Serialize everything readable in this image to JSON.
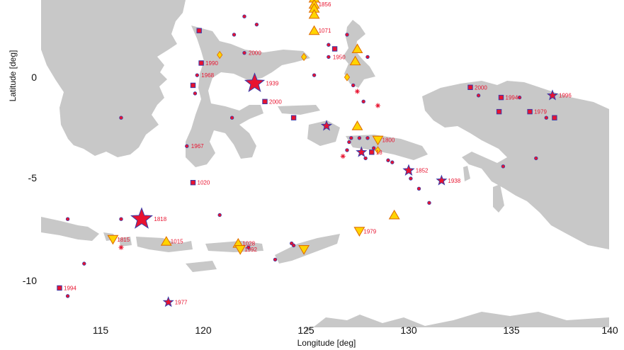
{
  "axes": {
    "x": {
      "label": "Longitude [deg]",
      "ticks": [
        "115",
        "120",
        "125",
        "130",
        "135",
        "140"
      ]
    },
    "y": {
      "label": "Latitude [deg]",
      "ticks": [
        "0",
        "-5",
        "-10"
      ]
    }
  },
  "colors": {
    "land": "#c8c8c8",
    "event_fill": "#e8132f",
    "event_stroke": "#3a3aa8",
    "volcano_fill": "#ffd400",
    "volcano_stroke": "#e07000",
    "label": "#e8132f"
  },
  "events": [
    {
      "lon": 125.4,
      "lat": 3.9,
      "type": "volcano-up"
    },
    {
      "lon": 125.4,
      "lat": 3.6,
      "type": "volcano-up",
      "label": "1856"
    },
    {
      "lon": 125.4,
      "lat": 3.4,
      "type": "volcano-up"
    },
    {
      "lon": 125.4,
      "lat": 3.1,
      "type": "volcano-up"
    },
    {
      "lon": 125.4,
      "lat": 2.3,
      "type": "volcano-up",
      "label": "1071"
    },
    {
      "lon": 122.0,
      "lat": 3.0,
      "type": "dot"
    },
    {
      "lon": 122.6,
      "lat": 2.6,
      "type": "dot"
    },
    {
      "lon": 119.8,
      "lat": 2.3,
      "type": "square"
    },
    {
      "lon": 121.5,
      "lat": 2.1,
      "type": "dot"
    },
    {
      "lon": 126.1,
      "lat": 1.6,
      "type": "dot"
    },
    {
      "lon": 127.0,
      "lat": 2.1,
      "type": "dot"
    },
    {
      "lon": 127.5,
      "lat": 1.4,
      "type": "volcano-up"
    },
    {
      "lon": 126.4,
      "lat": 1.4,
      "type": "square"
    },
    {
      "lon": 126.1,
      "lat": 1.0,
      "type": "dot",
      "label": "1950"
    },
    {
      "lon": 127.4,
      "lat": 0.8,
      "type": "volcano-up"
    },
    {
      "lon": 128.0,
      "lat": 1.0,
      "type": "dot"
    },
    {
      "lon": 122.0,
      "lat": 1.2,
      "type": "dot",
      "label": "2000"
    },
    {
      "lon": 120.8,
      "lat": 1.1,
      "type": "diamond"
    },
    {
      "lon": 124.9,
      "lat": 1.0,
      "type": "diamond"
    },
    {
      "lon": 119.9,
      "lat": 0.7,
      "type": "square",
      "label": "1990"
    },
    {
      "lon": 119.7,
      "lat": 0.1,
      "type": "dot",
      "label": "1968"
    },
    {
      "lon": 119.5,
      "lat": -0.4,
      "type": "square"
    },
    {
      "lon": 119.6,
      "lat": -0.8,
      "type": "dot"
    },
    {
      "lon": 122.5,
      "lat": -0.3,
      "type": "star",
      "size": 2.0,
      "label": "1939"
    },
    {
      "lon": 125.4,
      "lat": 0.1,
      "type": "dot"
    },
    {
      "lon": 127.0,
      "lat": 0.0,
      "type": "diamond"
    },
    {
      "lon": 127.3,
      "lat": -0.4,
      "type": "dot"
    },
    {
      "lon": 127.5,
      "lat": -0.7,
      "type": "burst"
    },
    {
      "lon": 123.0,
      "lat": -1.2,
      "type": "square",
      "label": "2000"
    },
    {
      "lon": 127.8,
      "lat": -1.2,
      "type": "dot"
    },
    {
      "lon": 128.5,
      "lat": -1.4,
      "type": "burst"
    },
    {
      "lon": 124.4,
      "lat": -2.0,
      "type": "square"
    },
    {
      "lon": 126.0,
      "lat": -2.4,
      "type": "star",
      "size": 1.0
    },
    {
      "lon": 127.5,
      "lat": -2.4,
      "type": "volcano-up"
    },
    {
      "lon": 127.2,
      "lat": -3.0,
      "type": "dot"
    },
    {
      "lon": 127.6,
      "lat": -3.0,
      "type": "dot"
    },
    {
      "lon": 127.1,
      "lat": -3.2,
      "type": "dot"
    },
    {
      "lon": 128.0,
      "lat": -3.0,
      "type": "dot"
    },
    {
      "lon": 128.5,
      "lat": -3.1,
      "type": "volcano-down",
      "label": "1800"
    },
    {
      "lon": 127.0,
      "lat": -3.6,
      "type": "dot"
    },
    {
      "lon": 127.7,
      "lat": -3.7,
      "type": "star",
      "size": 1.0
    },
    {
      "lon": 128.2,
      "lat": -3.7,
      "type": "square",
      "label": "18"
    },
    {
      "lon": 128.5,
      "lat": -3.6,
      "type": "diamond"
    },
    {
      "lon": 128.3,
      "lat": -3.5,
      "type": "dot"
    },
    {
      "lon": 127.9,
      "lat": -4.0,
      "type": "dot"
    },
    {
      "lon": 126.8,
      "lat": -3.9,
      "type": "burst"
    },
    {
      "lon": 121.4,
      "lat": -2.0,
      "type": "dot"
    },
    {
      "lon": 116.0,
      "lat": -2.0,
      "type": "dot"
    },
    {
      "lon": 119.2,
      "lat": -3.4,
      "type": "dot",
      "label": "1967"
    },
    {
      "lon": 129.0,
      "lat": -4.1,
      "type": "dot"
    },
    {
      "lon": 129.2,
      "lat": -4.2,
      "type": "dot"
    },
    {
      "lon": 130.0,
      "lat": -4.6,
      "type": "star",
      "size": 1.1,
      "label": "1852"
    },
    {
      "lon": 130.1,
      "lat": -5.0,
      "type": "dot"
    },
    {
      "lon": 130.5,
      "lat": -5.5,
      "type": "dot"
    },
    {
      "lon": 131.6,
      "lat": -5.1,
      "type": "star",
      "size": 1.0,
      "label": "1938"
    },
    {
      "lon": 131.0,
      "lat": -6.2,
      "type": "dot"
    },
    {
      "lon": 119.5,
      "lat": -5.2,
      "type": "square",
      "label": "1020"
    },
    {
      "lon": 133.0,
      "lat": -0.5,
      "type": "square",
      "label": "2000"
    },
    {
      "lon": 133.4,
      "lat": -0.9,
      "type": "dot"
    },
    {
      "lon": 134.5,
      "lat": -1.0,
      "type": "square",
      "label": "1994"
    },
    {
      "lon": 135.4,
      "lat": -1.0,
      "type": "dot"
    },
    {
      "lon": 137.0,
      "lat": -0.9,
      "type": "star",
      "size": 1.0,
      "label": "1996"
    },
    {
      "lon": 134.4,
      "lat": -1.7,
      "type": "square"
    },
    {
      "lon": 135.9,
      "lat": -1.7,
      "type": "square",
      "label": "1979"
    },
    {
      "lon": 136.7,
      "lat": -2.0,
      "type": "dot"
    },
    {
      "lon": 137.1,
      "lat": -2.0,
      "type": "square"
    },
    {
      "lon": 134.6,
      "lat": -4.4,
      "type": "dot"
    },
    {
      "lon": 136.2,
      "lat": -4.0,
      "type": "dot"
    },
    {
      "lon": 113.4,
      "lat": -7.0,
      "type": "dot"
    },
    {
      "lon": 116.0,
      "lat": -7.0,
      "type": "dot"
    },
    {
      "lon": 117.0,
      "lat": -7.0,
      "type": "star",
      "size": 2.2,
      "label": "1818"
    },
    {
      "lon": 120.8,
      "lat": -6.8,
      "type": "dot"
    },
    {
      "lon": 129.3,
      "lat": -6.8,
      "type": "volcano-up"
    },
    {
      "lon": 127.6,
      "lat": -7.6,
      "type": "volcano-down",
      "label": "1979"
    },
    {
      "lon": 115.6,
      "lat": -8.0,
      "type": "volcano-down",
      "label": "1815"
    },
    {
      "lon": 116.0,
      "lat": -8.4,
      "type": "burst"
    },
    {
      "lon": 118.2,
      "lat": -8.1,
      "type": "volcano-up",
      "label": "1015"
    },
    {
      "lon": 121.7,
      "lat": -8.2,
      "type": "volcano-up",
      "label": "1028"
    },
    {
      "lon": 121.8,
      "lat": -8.5,
      "type": "volcano-down",
      "label": "1992"
    },
    {
      "lon": 122.2,
      "lat": -8.4,
      "type": "dot"
    },
    {
      "lon": 124.3,
      "lat": -8.2,
      "type": "dot"
    },
    {
      "lon": 124.4,
      "lat": -8.3,
      "type": "dot"
    },
    {
      "lon": 124.9,
      "lat": -8.5,
      "type": "volcano-down"
    },
    {
      "lon": 123.5,
      "lat": -9.0,
      "type": "dot"
    },
    {
      "lon": 114.2,
      "lat": -9.2,
      "type": "dot"
    },
    {
      "lon": 113.0,
      "lat": -10.4,
      "type": "square",
      "label": "1994"
    },
    {
      "lon": 113.4,
      "lat": -10.8,
      "type": "dot"
    },
    {
      "lon": 118.3,
      "lat": -11.1,
      "type": "star",
      "size": 1.0,
      "label": "1977"
    }
  ]
}
